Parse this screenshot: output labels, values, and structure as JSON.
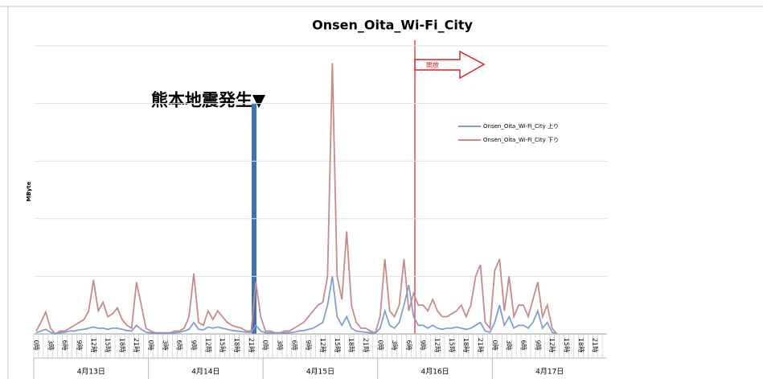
{
  "chart_data": {
    "type": "line",
    "title": "Onsen_Oita_Wi-Fi_City",
    "ylabel": "MByte",
    "categories": [
      "0時",
      null,
      null,
      "3時",
      null,
      null,
      "6時",
      null,
      null,
      "9時",
      null,
      null,
      "12時",
      null,
      null,
      "15時",
      null,
      null,
      "18時",
      null,
      null,
      "21時",
      null,
      null,
      "0時",
      null,
      null,
      "3時",
      null,
      null,
      "6時",
      null,
      null,
      "9時",
      null,
      null,
      "12時",
      null,
      null,
      "15時",
      null,
      null,
      "18時",
      null,
      null,
      "21時",
      null,
      null,
      "0時",
      null,
      null,
      "3時",
      null,
      null,
      "6時",
      null,
      null,
      "9時",
      null,
      null,
      "12時",
      null,
      null,
      "15時",
      null,
      null,
      "18時",
      null,
      null,
      "21時",
      null,
      null,
      "0時",
      null,
      null,
      "3時",
      null,
      null,
      "6時",
      null,
      null,
      "9時",
      null,
      null,
      "12時",
      null,
      null,
      "15時",
      null,
      null,
      "18時",
      null,
      null,
      "21時",
      null,
      null,
      "0時",
      null,
      null,
      "3時",
      null,
      null,
      "6時",
      null,
      null,
      "9時",
      null,
      null,
      "12時",
      null,
      null,
      "15時",
      null,
      null,
      "18時",
      null,
      null,
      "21時",
      null,
      null
    ],
    "days": [
      "4月13日",
      "4月14日",
      "4月15日",
      "4月16日",
      "4月17日"
    ],
    "series": [
      {
        "name": "Onsen_Oita_Wi-Fi_City 上り",
        "color": "#7f9fd4",
        "values": [
          0.02,
          0.05,
          0.08,
          0.03,
          0,
          0.02,
          0.03,
          0.05,
          0.05,
          0.07,
          0.08,
          0.1,
          0.12,
          0.1,
          0.1,
          0.08,
          0.1,
          0.1,
          0.08,
          0.06,
          0.05,
          0.15,
          0.08,
          0.03,
          0.02,
          0.01,
          0.01,
          0.01,
          0.01,
          0.02,
          0.03,
          0.05,
          0.08,
          0.2,
          0.08,
          0.07,
          0.12,
          0.1,
          0.12,
          0.1,
          0.08,
          0.06,
          0.05,
          0.04,
          0.03,
          0.03,
          0.15,
          0.05,
          0.02,
          0.02,
          0.01,
          0.01,
          0.02,
          0.02,
          0.03,
          0.05,
          0.06,
          0.08,
          0.1,
          0.15,
          0.2,
          0.5,
          1.0,
          0.3,
          0.15,
          0.3,
          0.1,
          0.05,
          0.04,
          0.03,
          0.02,
          0.01,
          0.1,
          0.4,
          0.15,
          0.1,
          0.2,
          0.5,
          0.85,
          0.3,
          0.15,
          0.15,
          0.1,
          0.15,
          0.1,
          0.08,
          0.1,
          0.1,
          0.12,
          0.1,
          0.08,
          0.1,
          0.15,
          0.2,
          0.05,
          0.03,
          0.2,
          0.5,
          0.15,
          0.3,
          0.1,
          0.15,
          0.15,
          0.1,
          0.2,
          0.4,
          0.1,
          0.2,
          0.03,
          0,
          null,
          null,
          null,
          null,
          null,
          null,
          null,
          null,
          null,
          null
        ]
      },
      {
        "name": "Onsen_Oita_Wi-Fi_City 下り",
        "color": "#c98a8a",
        "values": [
          0.05,
          0.2,
          0.38,
          0.1,
          0,
          0.05,
          0.05,
          0.1,
          0.15,
          0.2,
          0.25,
          0.4,
          0.94,
          0.4,
          0.55,
          0.3,
          0.35,
          0.45,
          0.25,
          0.15,
          0.1,
          0.9,
          0.5,
          0.1,
          0.05,
          0.02,
          0.02,
          0.02,
          0.02,
          0.05,
          0.05,
          0.1,
          0.3,
          1.05,
          0.2,
          0.15,
          0.4,
          0.25,
          0.4,
          0.3,
          0.2,
          0.15,
          0.12,
          0.1,
          0.05,
          0.05,
          0.9,
          0.3,
          0.05,
          0.05,
          0.02,
          0.02,
          0.05,
          0.05,
          0.1,
          0.15,
          0.2,
          0.3,
          0.4,
          0.5,
          0.55,
          1.0,
          4.7,
          1.0,
          0.6,
          1.78,
          0.5,
          0.2,
          0.1,
          0.1,
          0.05,
          0.02,
          0.3,
          1.3,
          0.4,
          0.3,
          0.5,
          1.3,
          0.4,
          0.7,
          0.5,
          0.5,
          0.4,
          0.6,
          0.4,
          0.3,
          0.3,
          0.35,
          0.4,
          0.5,
          0.3,
          0.5,
          1.0,
          1.2,
          0.2,
          0.1,
          1.1,
          1.3,
          0.4,
          1.0,
          0.3,
          0.5,
          0.5,
          0.3,
          0.6,
          0.9,
          0.3,
          0.5,
          0.1,
          0,
          null,
          null,
          null,
          null,
          null,
          null,
          null,
          null,
          null,
          null
        ]
      }
    ],
    "ylim": [
      0,
      5
    ],
    "yticks": [
      0,
      1,
      2,
      3,
      4,
      5
    ],
    "grid": true,
    "annotations": [
      "熊本地震発生▼",
      "開放"
    ]
  }
}
